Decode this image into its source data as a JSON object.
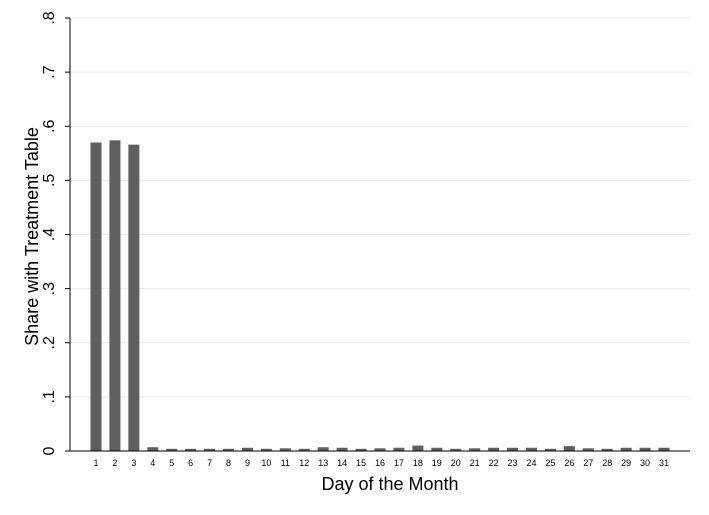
{
  "chart_data": {
    "type": "bar",
    "xlabel": "Day of the Month",
    "ylabel": "Share with Treatment Table",
    "ylim": [
      0,
      0.8
    ],
    "yticks": [
      0,
      0.1,
      0.2,
      0.3,
      0.4,
      0.5,
      0.6,
      0.7,
      0.8
    ],
    "ytick_labels": [
      "0",
      ".1",
      ".2",
      ".3",
      ".4",
      ".5",
      ".6",
      ".7",
      ".8"
    ],
    "categories": [
      "1",
      "2",
      "3",
      "4",
      "5",
      "6",
      "7",
      "8",
      "9",
      "10",
      "11",
      "12",
      "13",
      "14",
      "15",
      "16",
      "17",
      "18",
      "19",
      "20",
      "21",
      "22",
      "23",
      "24",
      "25",
      "26",
      "27",
      "28",
      "29",
      "30",
      "31"
    ],
    "values": [
      0.57,
      0.574,
      0.566,
      0.007,
      0.004,
      0.004,
      0.004,
      0.004,
      0.006,
      0.004,
      0.005,
      0.004,
      0.007,
      0.006,
      0.004,
      0.005,
      0.006,
      0.01,
      0.006,
      0.004,
      0.005,
      0.006,
      0.006,
      0.006,
      0.004,
      0.009,
      0.005,
      0.004,
      0.006,
      0.006,
      0.006
    ],
    "grid": true,
    "bar_color": "#5f5f5f",
    "grid_color": "#eaeaea"
  }
}
